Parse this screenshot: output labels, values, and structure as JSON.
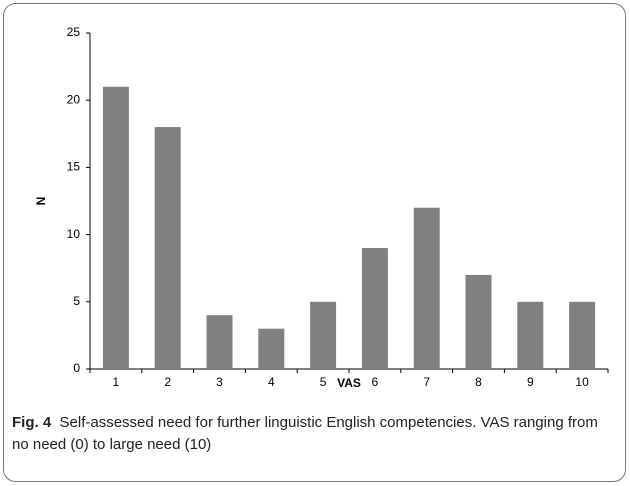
{
  "chart_data": {
    "type": "bar",
    "categories": [
      "1",
      "2",
      "3",
      "4",
      "5",
      "6",
      "7",
      "8",
      "9",
      "10"
    ],
    "values": [
      21,
      18,
      4,
      3,
      5,
      9,
      12,
      7,
      5,
      5
    ],
    "color": "#808080",
    "ylim": [
      0,
      25
    ],
    "yticks": [
      0,
      5,
      10,
      15,
      20,
      25
    ],
    "x_label": "VAS",
    "y_label": "N",
    "caption_label": "Fig. 4",
    "caption_text": "Self-assessed need for further linguistic English competencies. VAS ranging from no need (0) to large need (10)"
  }
}
